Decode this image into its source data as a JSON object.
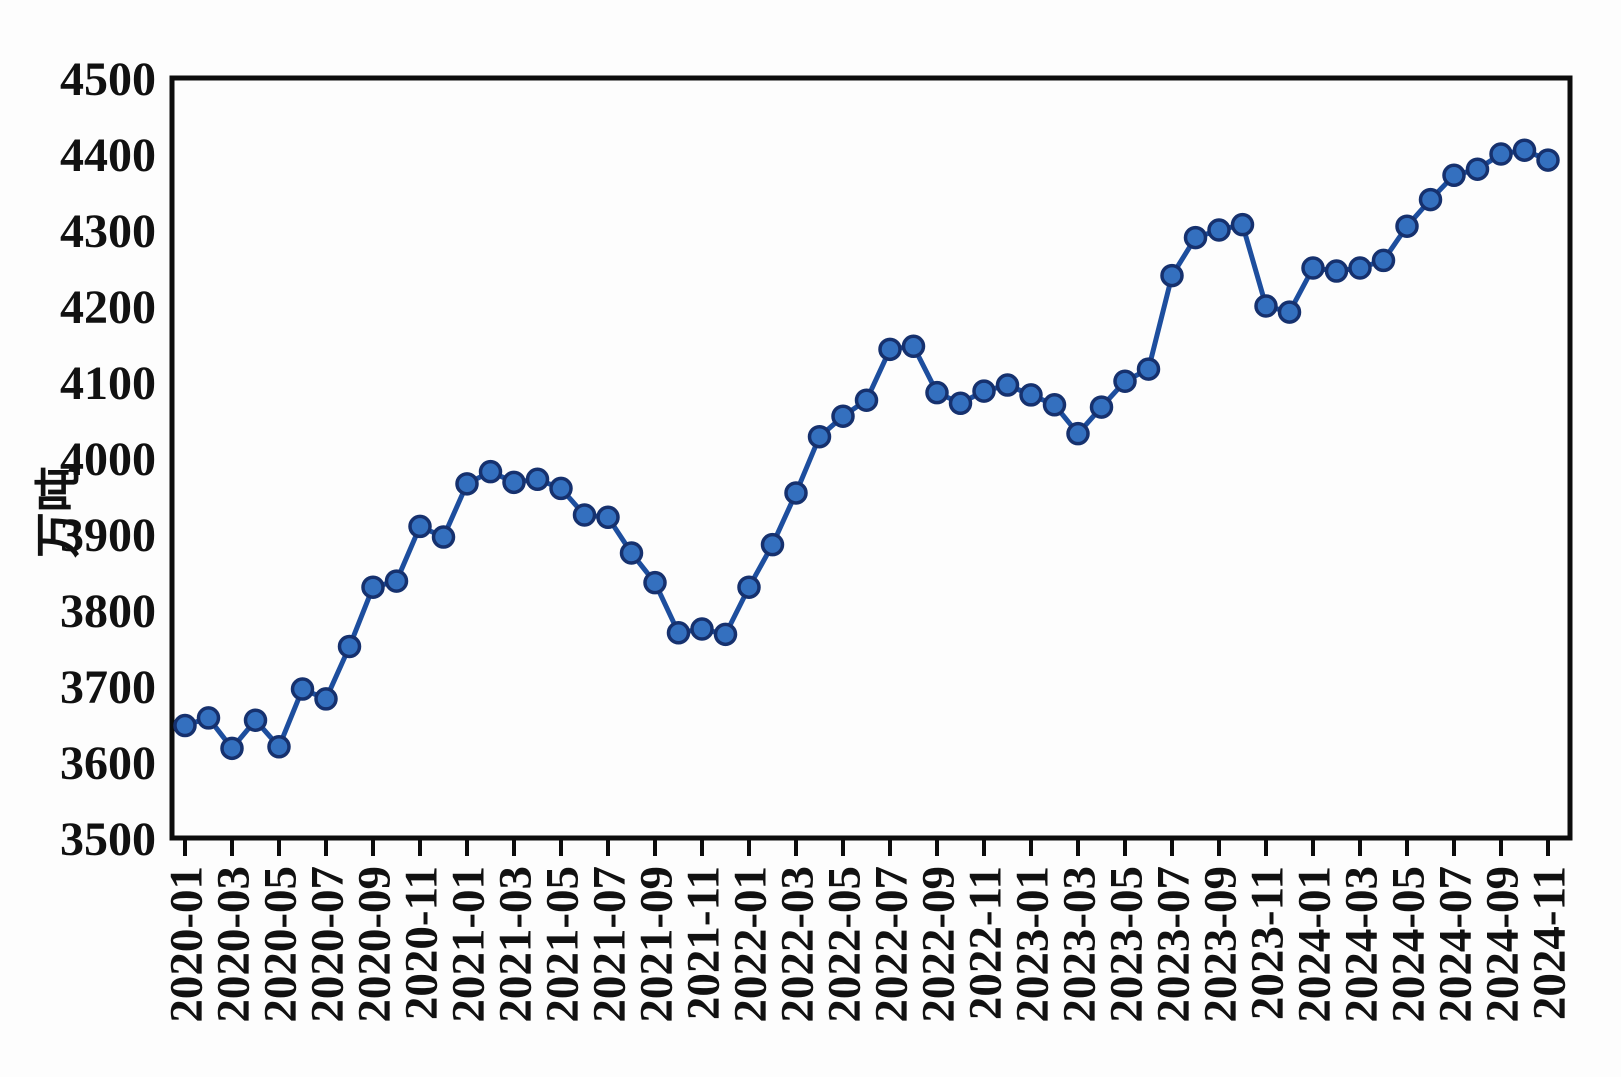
{
  "chart_data": {
    "type": "line",
    "title": "",
    "xlabel": "",
    "ylabel": "万吨",
    "ylim": [
      3500,
      4500
    ],
    "y_ticks": [
      3500,
      3600,
      3700,
      3800,
      3900,
      4000,
      4100,
      4200,
      4300,
      4400,
      4500
    ],
    "x_tick_every": 2,
    "grid": false,
    "legend": null,
    "x": [
      "2020-01",
      "2020-02",
      "2020-03",
      "2020-04",
      "2020-05",
      "2020-06",
      "2020-07",
      "2020-08",
      "2020-09",
      "2020-10",
      "2020-11",
      "2020-12",
      "2021-01",
      "2021-02",
      "2021-03",
      "2021-04",
      "2021-05",
      "2021-06",
      "2021-07",
      "2021-08",
      "2021-09",
      "2021-10",
      "2021-11",
      "2021-12",
      "2022-01",
      "2022-02",
      "2022-03",
      "2022-04",
      "2022-05",
      "2022-06",
      "2022-07",
      "2022-08",
      "2022-09",
      "2022-10",
      "2022-11",
      "2022-12",
      "2023-01",
      "2023-02",
      "2023-03",
      "2023-04",
      "2023-05",
      "2023-06",
      "2023-07",
      "2023-08",
      "2023-09",
      "2023-10",
      "2023-11",
      "2023-12",
      "2024-01",
      "2024-02",
      "2024-03",
      "2024-04",
      "2024-05",
      "2024-06",
      "2024-07",
      "2024-08",
      "2024-09",
      "2024-10",
      "2024-11"
    ],
    "values": [
      3648,
      3658,
      3618,
      3655,
      3620,
      3696,
      3683,
      3752,
      3830,
      3838,
      3910,
      3896,
      3966,
      3982,
      3968,
      3972,
      3960,
      3925,
      3922,
      3875,
      3836,
      3770,
      3775,
      3768,
      3830,
      3886,
      3954,
      4028,
      4055,
      4076,
      4143,
      4147,
      4086,
      4072,
      4088,
      4096,
      4083,
      4070,
      4032,
      4067,
      4101,
      4117,
      4240,
      4290,
      4300,
      4307,
      4200,
      4192,
      4250,
      4246,
      4250,
      4260,
      4305,
      4340,
      4372,
      4380,
      4400,
      4405,
      4392
    ],
    "colors": {
      "line": "#1d4e9e",
      "marker_fill": "#3470bf",
      "marker_edge": "#16316e",
      "axis": "#0d0d0d",
      "text": "#111111"
    }
  }
}
